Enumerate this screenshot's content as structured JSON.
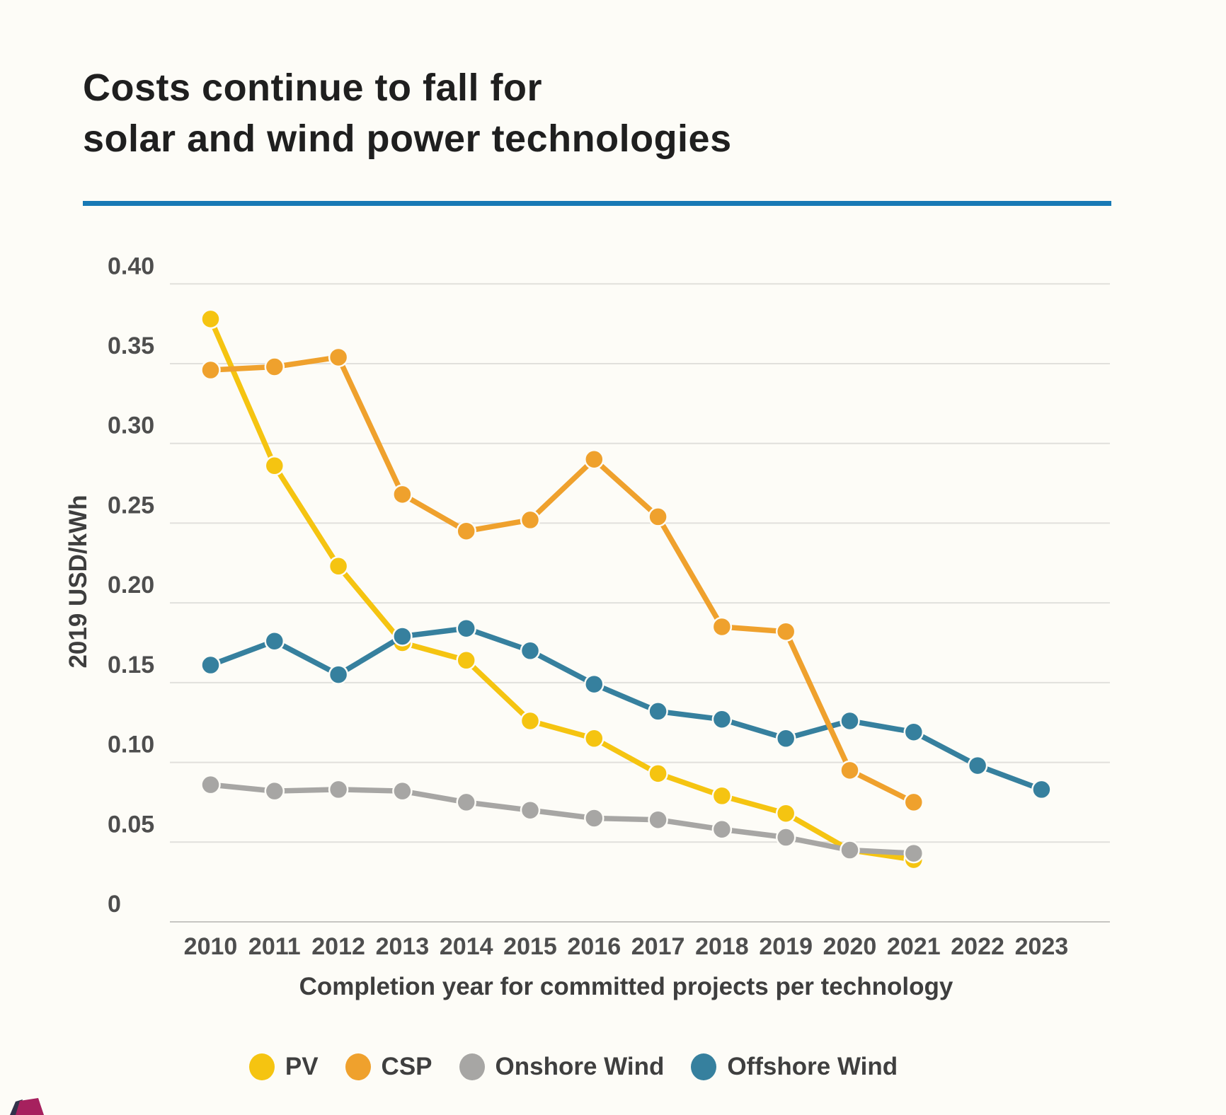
{
  "page": {
    "background": "#FDFCF7"
  },
  "header": {
    "title_line1": "Costs continue to fall for",
    "title_line2": "solar and wind power technologies",
    "title_color": "#1F1F1F",
    "rule_color": "#1879B5"
  },
  "chart_data": {
    "type": "line",
    "x": [
      "2010",
      "2011",
      "2012",
      "2013",
      "2014",
      "2015",
      "2016",
      "2017",
      "2018",
      "2019",
      "2020",
      "2021",
      "2022",
      "2023"
    ],
    "xlabel": "Completion year for committed projects per technology",
    "ylabel": "2019 USD/kWh",
    "ylim": [
      0,
      0.42
    ],
    "grid": true,
    "legend_position": "bottom",
    "yticks": [
      {
        "label": "0.40",
        "value": 0.4
      },
      {
        "label": "0.35",
        "value": 0.35
      },
      {
        "label": "0.30",
        "value": 0.3
      },
      {
        "label": "0.25",
        "value": 0.25
      },
      {
        "label": "0.20",
        "value": 0.2
      },
      {
        "label": "0.15",
        "value": 0.15
      },
      {
        "label": "0.10",
        "value": 0.1
      },
      {
        "label": "0.05",
        "value": 0.05
      },
      {
        "label": "0",
        "value": 0
      }
    ],
    "series": [
      {
        "name": "PV",
        "color": "#F5C411",
        "z": 1,
        "values": [
          0.378,
          0.286,
          0.223,
          0.175,
          0.164,
          0.126,
          0.115,
          0.093,
          0.079,
          0.068,
          0.045,
          0.039,
          null,
          null
        ]
      },
      {
        "name": "CSP",
        "color": "#EFA12D",
        "z": 3,
        "values": [
          0.346,
          0.348,
          0.354,
          0.268,
          0.245,
          0.252,
          0.29,
          0.254,
          0.185,
          0.182,
          0.095,
          0.075,
          null,
          null
        ]
      },
      {
        "name": "Onshore Wind",
        "color": "#A7A6A4",
        "z": 4,
        "values": [
          0.086,
          0.082,
          0.083,
          0.082,
          0.075,
          0.07,
          0.065,
          0.064,
          0.058,
          0.053,
          0.045,
          0.043,
          null,
          null
        ]
      },
      {
        "name": "Offshore Wind",
        "color": "#36809E",
        "z": 2,
        "values": [
          0.161,
          0.176,
          0.155,
          0.179,
          0.184,
          0.17,
          0.149,
          0.132,
          0.127,
          0.115,
          0.126,
          0.119,
          0.098,
          0.083
        ]
      }
    ],
    "text_colors": {
      "ticks": "#4E4E4E",
      "axis_titles": "#3E3E3E",
      "legend": "#3F3F3F"
    },
    "grid_colors": {
      "line": "#E1E0DC",
      "baseline": "#C7C6C2"
    }
  },
  "logo": {
    "color": "#A6215E",
    "accent": "#32324A"
  }
}
